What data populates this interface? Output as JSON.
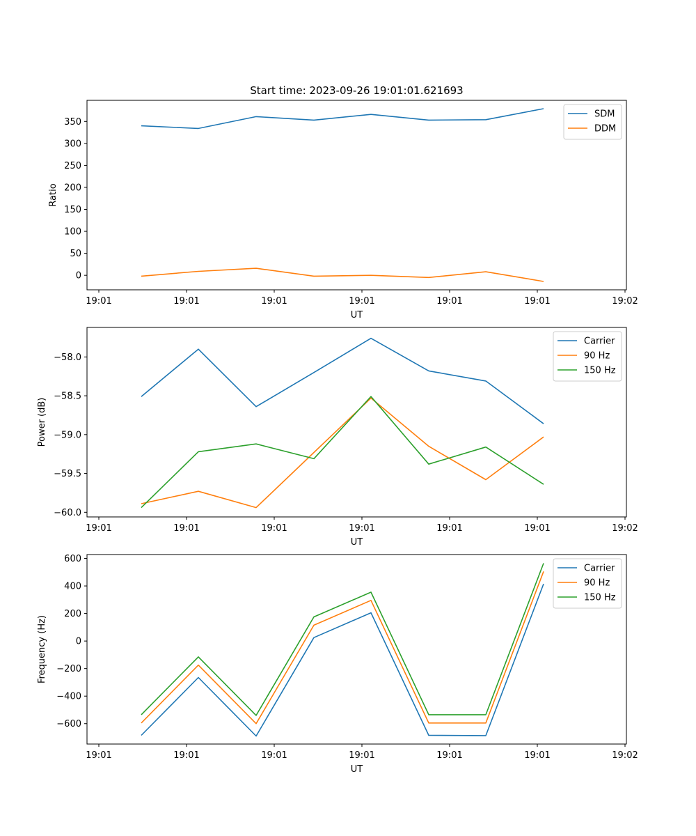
{
  "figure_title": "Start time: 2023-09-26 19:01:01.621693",
  "chart_data": [
    {
      "type": "line",
      "xlabel": "UT",
      "ylabel": "Ratio",
      "x_ticks": [
        "19:01",
        "19:01",
        "19:01",
        "19:01",
        "19:01",
        "19:01",
        "19:01"
      ],
      "x_tick_last": "19:02",
      "ylim": [
        -33,
        398
      ],
      "y_ticks": [
        0,
        50,
        100,
        150,
        200,
        250,
        300,
        350
      ],
      "y_tick_labels": [
        "0",
        "50",
        "100",
        "150",
        "200",
        "250",
        "300",
        "350"
      ],
      "legend": "top-right",
      "series": [
        {
          "name": "SDM",
          "color": "#1f77b4",
          "values": [
            340,
            334,
            361,
            353,
            366,
            353,
            354,
            379
          ]
        },
        {
          "name": "DDM",
          "color": "#ff7f0e",
          "values": [
            -2,
            9,
            16,
            -2,
            0,
            -5,
            8,
            -14
          ]
        }
      ]
    },
    {
      "type": "line",
      "xlabel": "UT",
      "ylabel": "Power (dB)",
      "x_ticks": [
        "19:01",
        "19:01",
        "19:01",
        "19:01",
        "19:01",
        "19:01",
        "19:01"
      ],
      "x_tick_last": "19:02",
      "ylim": [
        -60.06,
        -57.62
      ],
      "y_ticks": [
        -60.0,
        -59.5,
        -59.0,
        -58.5,
        -58.0
      ],
      "y_tick_labels": [
        "−60.0",
        "−59.5",
        "−59.0",
        "−58.5",
        "−58.0"
      ],
      "legend": "top-right",
      "series": [
        {
          "name": "Carrier",
          "color": "#1f77b4",
          "values": [
            -58.51,
            -57.9,
            -58.64,
            -58.2,
            -57.76,
            -58.18,
            -58.31,
            -58.86
          ]
        },
        {
          "name": "90 Hz",
          "color": "#ff7f0e",
          "values": [
            -59.89,
            -59.73,
            -59.94,
            -59.23,
            -58.53,
            -59.15,
            -59.58,
            -59.03
          ]
        },
        {
          "name": "150 Hz",
          "color": "#2ca02c",
          "values": [
            -59.94,
            -59.22,
            -59.12,
            -59.31,
            -58.51,
            -59.38,
            -59.16,
            -59.64
          ]
        }
      ]
    },
    {
      "type": "line",
      "xlabel": "UT",
      "ylabel": "Frequency (Hz)",
      "x_ticks": [
        "19:01",
        "19:01",
        "19:01",
        "19:01",
        "19:01",
        "19:01",
        "19:01"
      ],
      "x_tick_last": "19:02",
      "ylim": [
        -748,
        628
      ],
      "y_ticks": [
        -600,
        -400,
        -200,
        0,
        200,
        400,
        600
      ],
      "y_tick_labels": [
        "−600",
        "−400",
        "−200",
        "0",
        "200",
        "400",
        "600"
      ],
      "legend": "top-right",
      "series": [
        {
          "name": "Carrier",
          "color": "#1f77b4",
          "values": [
            -685,
            -265,
            -690,
            25,
            205,
            -685,
            -687,
            415
          ]
        },
        {
          "name": "90 Hz",
          "color": "#ff7f0e",
          "values": [
            -595,
            -175,
            -600,
            115,
            295,
            -595,
            -595,
            505
          ]
        },
        {
          "name": "150 Hz",
          "color": "#2ca02c",
          "values": [
            -535,
            -115,
            -540,
            175,
            355,
            -535,
            -535,
            565
          ]
        }
      ]
    }
  ]
}
